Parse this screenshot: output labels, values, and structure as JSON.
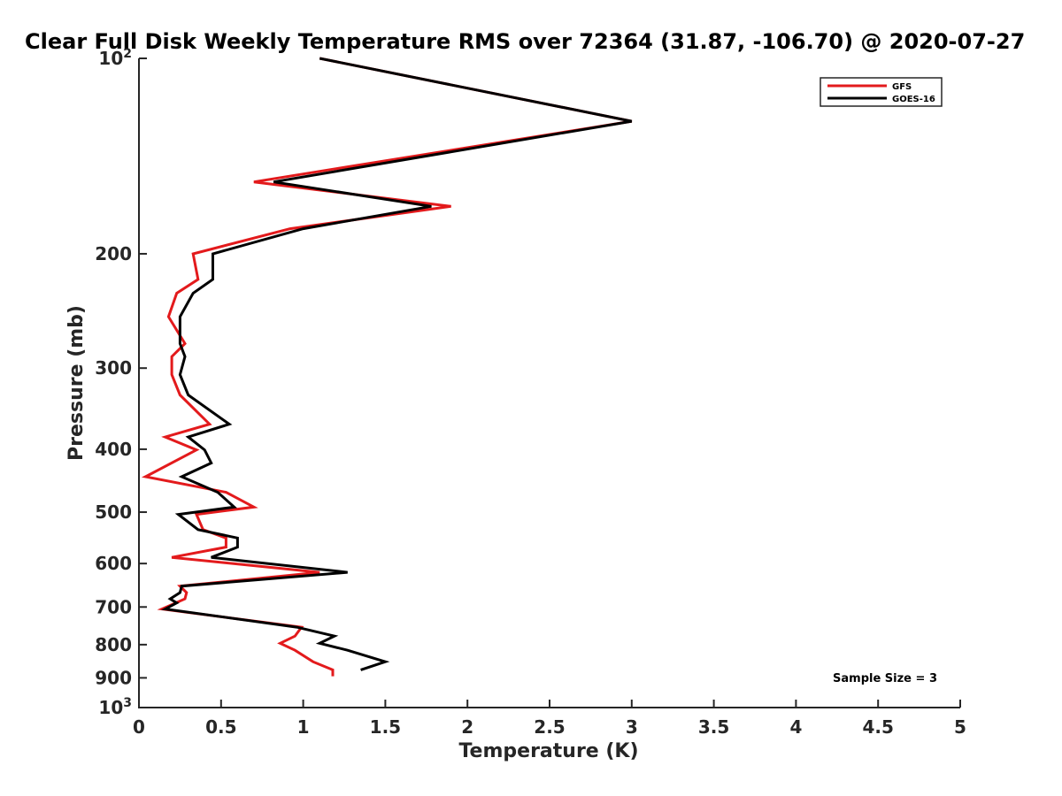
{
  "chart_data": {
    "type": "line",
    "title": "Clear Full Disk Weekly Temperature RMS over 72364 (31.87, -106.70) @ 2020-07-27",
    "xlabel": "Temperature (K)",
    "ylabel": "Pressure (mb)",
    "xlim": [
      0,
      5
    ],
    "ylim": [
      100,
      1000
    ],
    "y_scale": "log",
    "y_reversed": true,
    "grid": false,
    "legend_position": "top-right",
    "x_ticks": [
      "0",
      "0.5",
      "1",
      "1.5",
      "2",
      "2.5",
      "3",
      "3.5",
      "4",
      "4.5",
      "5"
    ],
    "y_ticks": [
      {
        "value": 100,
        "base": "10",
        "exp": "2"
      },
      {
        "value": 200,
        "label": "200"
      },
      {
        "value": 300,
        "label": "300"
      },
      {
        "value": 400,
        "label": "400"
      },
      {
        "value": 500,
        "label": "500"
      },
      {
        "value": 600,
        "label": "600"
      },
      {
        "value": 700,
        "label": "700"
      },
      {
        "value": 800,
        "label": "800"
      },
      {
        "value": 900,
        "label": "900"
      },
      {
        "value": 1000,
        "base": "10",
        "exp": "3"
      }
    ],
    "series": [
      {
        "name": "GFS",
        "color": "#e31a1c",
        "points": [
          [
            1.1,
            100
          ],
          [
            3.0,
            125
          ],
          [
            0.7,
            155
          ],
          [
            1.9,
            169
          ],
          [
            0.92,
            183
          ],
          [
            0.33,
            200
          ],
          [
            0.36,
            219
          ],
          [
            0.23,
            230
          ],
          [
            0.18,
            250
          ],
          [
            0.28,
            275
          ],
          [
            0.2,
            288
          ],
          [
            0.2,
            307
          ],
          [
            0.25,
            330
          ],
          [
            0.43,
            366
          ],
          [
            0.16,
            383
          ],
          [
            0.35,
            401
          ],
          [
            0.04,
            441
          ],
          [
            0.53,
            466
          ],
          [
            0.7,
            491
          ],
          [
            0.35,
            504
          ],
          [
            0.39,
            532
          ],
          [
            0.53,
            548
          ],
          [
            0.53,
            566
          ],
          [
            0.2,
            587
          ],
          [
            1.1,
            619
          ],
          [
            0.25,
            650
          ],
          [
            0.29,
            665
          ],
          [
            0.28,
            680
          ],
          [
            0.14,
            705
          ],
          [
            0.99,
            752
          ],
          [
            0.95,
            776
          ],
          [
            0.86,
            796
          ],
          [
            0.95,
            816
          ],
          [
            1.06,
            850
          ],
          [
            1.18,
            875
          ],
          [
            1.18,
            895
          ]
        ]
      },
      {
        "name": "GOES-16",
        "color": "#000000",
        "points": [
          [
            1.1,
            100
          ],
          [
            3.0,
            125
          ],
          [
            0.82,
            155
          ],
          [
            1.78,
            169
          ],
          [
            1.0,
            183
          ],
          [
            0.45,
            200
          ],
          [
            0.45,
            219
          ],
          [
            0.33,
            230
          ],
          [
            0.25,
            250
          ],
          [
            0.25,
            275
          ],
          [
            0.28,
            288
          ],
          [
            0.25,
            307
          ],
          [
            0.3,
            330
          ],
          [
            0.55,
            366
          ],
          [
            0.3,
            383
          ],
          [
            0.4,
            401
          ],
          [
            0.44,
            420
          ],
          [
            0.26,
            441
          ],
          [
            0.48,
            466
          ],
          [
            0.58,
            491
          ],
          [
            0.24,
            504
          ],
          [
            0.36,
            532
          ],
          [
            0.6,
            548
          ],
          [
            0.6,
            566
          ],
          [
            0.44,
            587
          ],
          [
            1.27,
            619
          ],
          [
            0.26,
            650
          ],
          [
            0.25,
            665
          ],
          [
            0.19,
            680
          ],
          [
            0.23,
            690
          ],
          [
            0.16,
            705
          ],
          [
            0.96,
            752
          ],
          [
            1.19,
            776
          ],
          [
            1.1,
            796
          ],
          [
            1.27,
            816
          ],
          [
            1.5,
            850
          ],
          [
            1.35,
            875
          ]
        ]
      }
    ],
    "annotations": [
      {
        "text": "Sample Size = 3",
        "position": "bottom-right"
      }
    ]
  }
}
